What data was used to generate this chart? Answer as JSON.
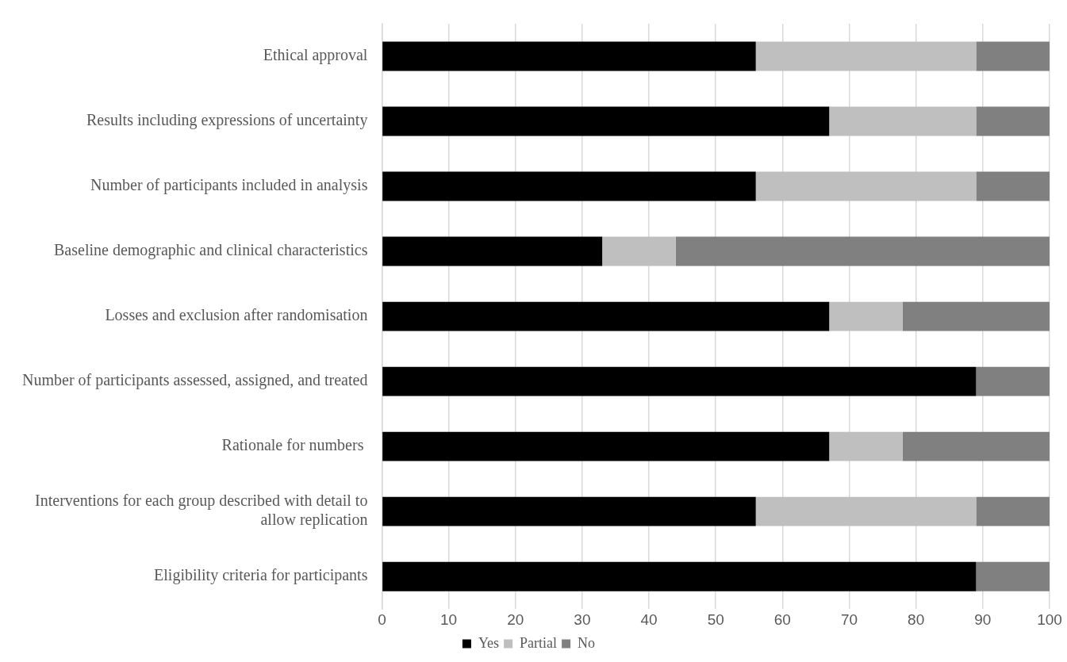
{
  "chart_data": {
    "type": "bar",
    "orientation": "horizontal",
    "stacked": true,
    "grid": "x",
    "legend": "bottom",
    "categories": [
      "Ethical approval",
      "Results including expressions of uncertainty",
      "Number of participants included in analysis",
      "Baseline demographic and clinical characteristics",
      "Losses and exclusion after randomisation",
      "Number of participants assessed, assigned, and treated",
      "Rationale for numbers ",
      "Interventions for each group described with detail to allow replication",
      "Eligibility criteria for participants"
    ],
    "series": [
      {
        "name": "Yes",
        "color": "#000000",
        "values": [
          56,
          67,
          56,
          33,
          67,
          89,
          67,
          56,
          89
        ]
      },
      {
        "name": "Partial",
        "color": "#bfbfbf",
        "values": [
          33,
          22,
          33,
          11,
          11,
          0,
          11,
          33,
          0
        ]
      },
      {
        "name": "No",
        "color": "#808080",
        "values": [
          11,
          11,
          11,
          56,
          22,
          11,
          22,
          11,
          11
        ]
      }
    ],
    "xlim": [
      0,
      100
    ],
    "xticks": [
      0,
      10,
      20,
      30,
      40,
      50,
      60,
      70,
      80,
      90,
      100
    ]
  }
}
